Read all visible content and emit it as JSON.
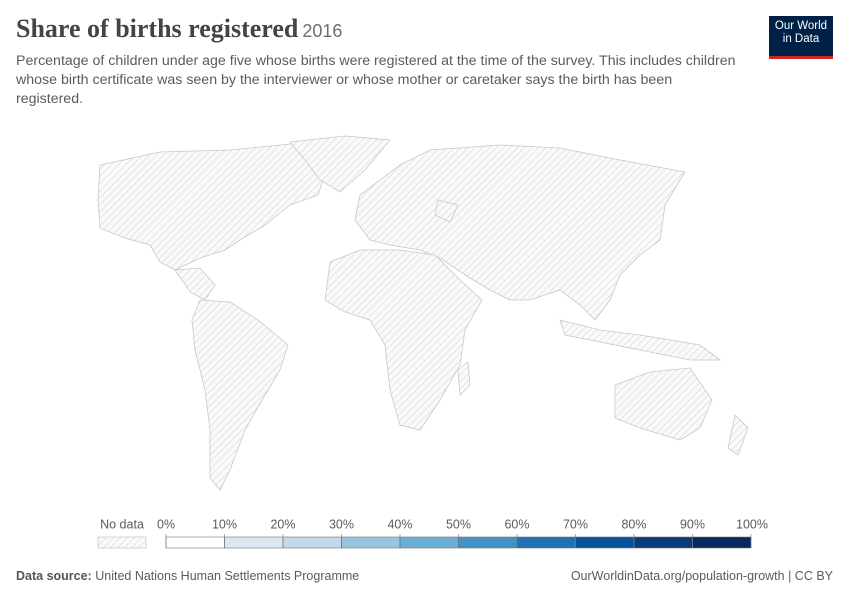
{
  "chart_data": {
    "type": "map",
    "title": "Share of births registered",
    "year": "2016",
    "subtitle": "Percentage of children under age five whose births were registered at the time of the survey. This includes children whose birth certificate was seen by the interviewer or whose mother or caretaker says the birth has been registered.",
    "legend": {
      "no_data_label": "No data",
      "ticks": [
        {
          "value": 0,
          "label": "0%"
        },
        {
          "value": 10,
          "label": "10%"
        },
        {
          "value": 20,
          "label": "20%"
        },
        {
          "value": 30,
          "label": "30%"
        },
        {
          "value": 40,
          "label": "40%"
        },
        {
          "value": 50,
          "label": "50%"
        },
        {
          "value": 60,
          "label": "60%"
        },
        {
          "value": 70,
          "label": "70%"
        },
        {
          "value": 80,
          "label": "80%"
        },
        {
          "value": 90,
          "label": "90%"
        },
        {
          "value": 100,
          "label": "100%"
        }
      ],
      "colors": [
        "#ffffff",
        "#dbe8f4",
        "#c2d8eb",
        "#98c4df",
        "#6aadd5",
        "#4292c7",
        "#2171b5",
        "#08519c",
        "#083c7d",
        "#08295f"
      ]
    }
  },
  "logo": [
    "Our World",
    "in Data"
  ],
  "footer": {
    "source_label": "Data source:",
    "source": "United Nations Human Settlements Programme",
    "url": "OurWorldinData.org/population-growth | CC BY"
  }
}
